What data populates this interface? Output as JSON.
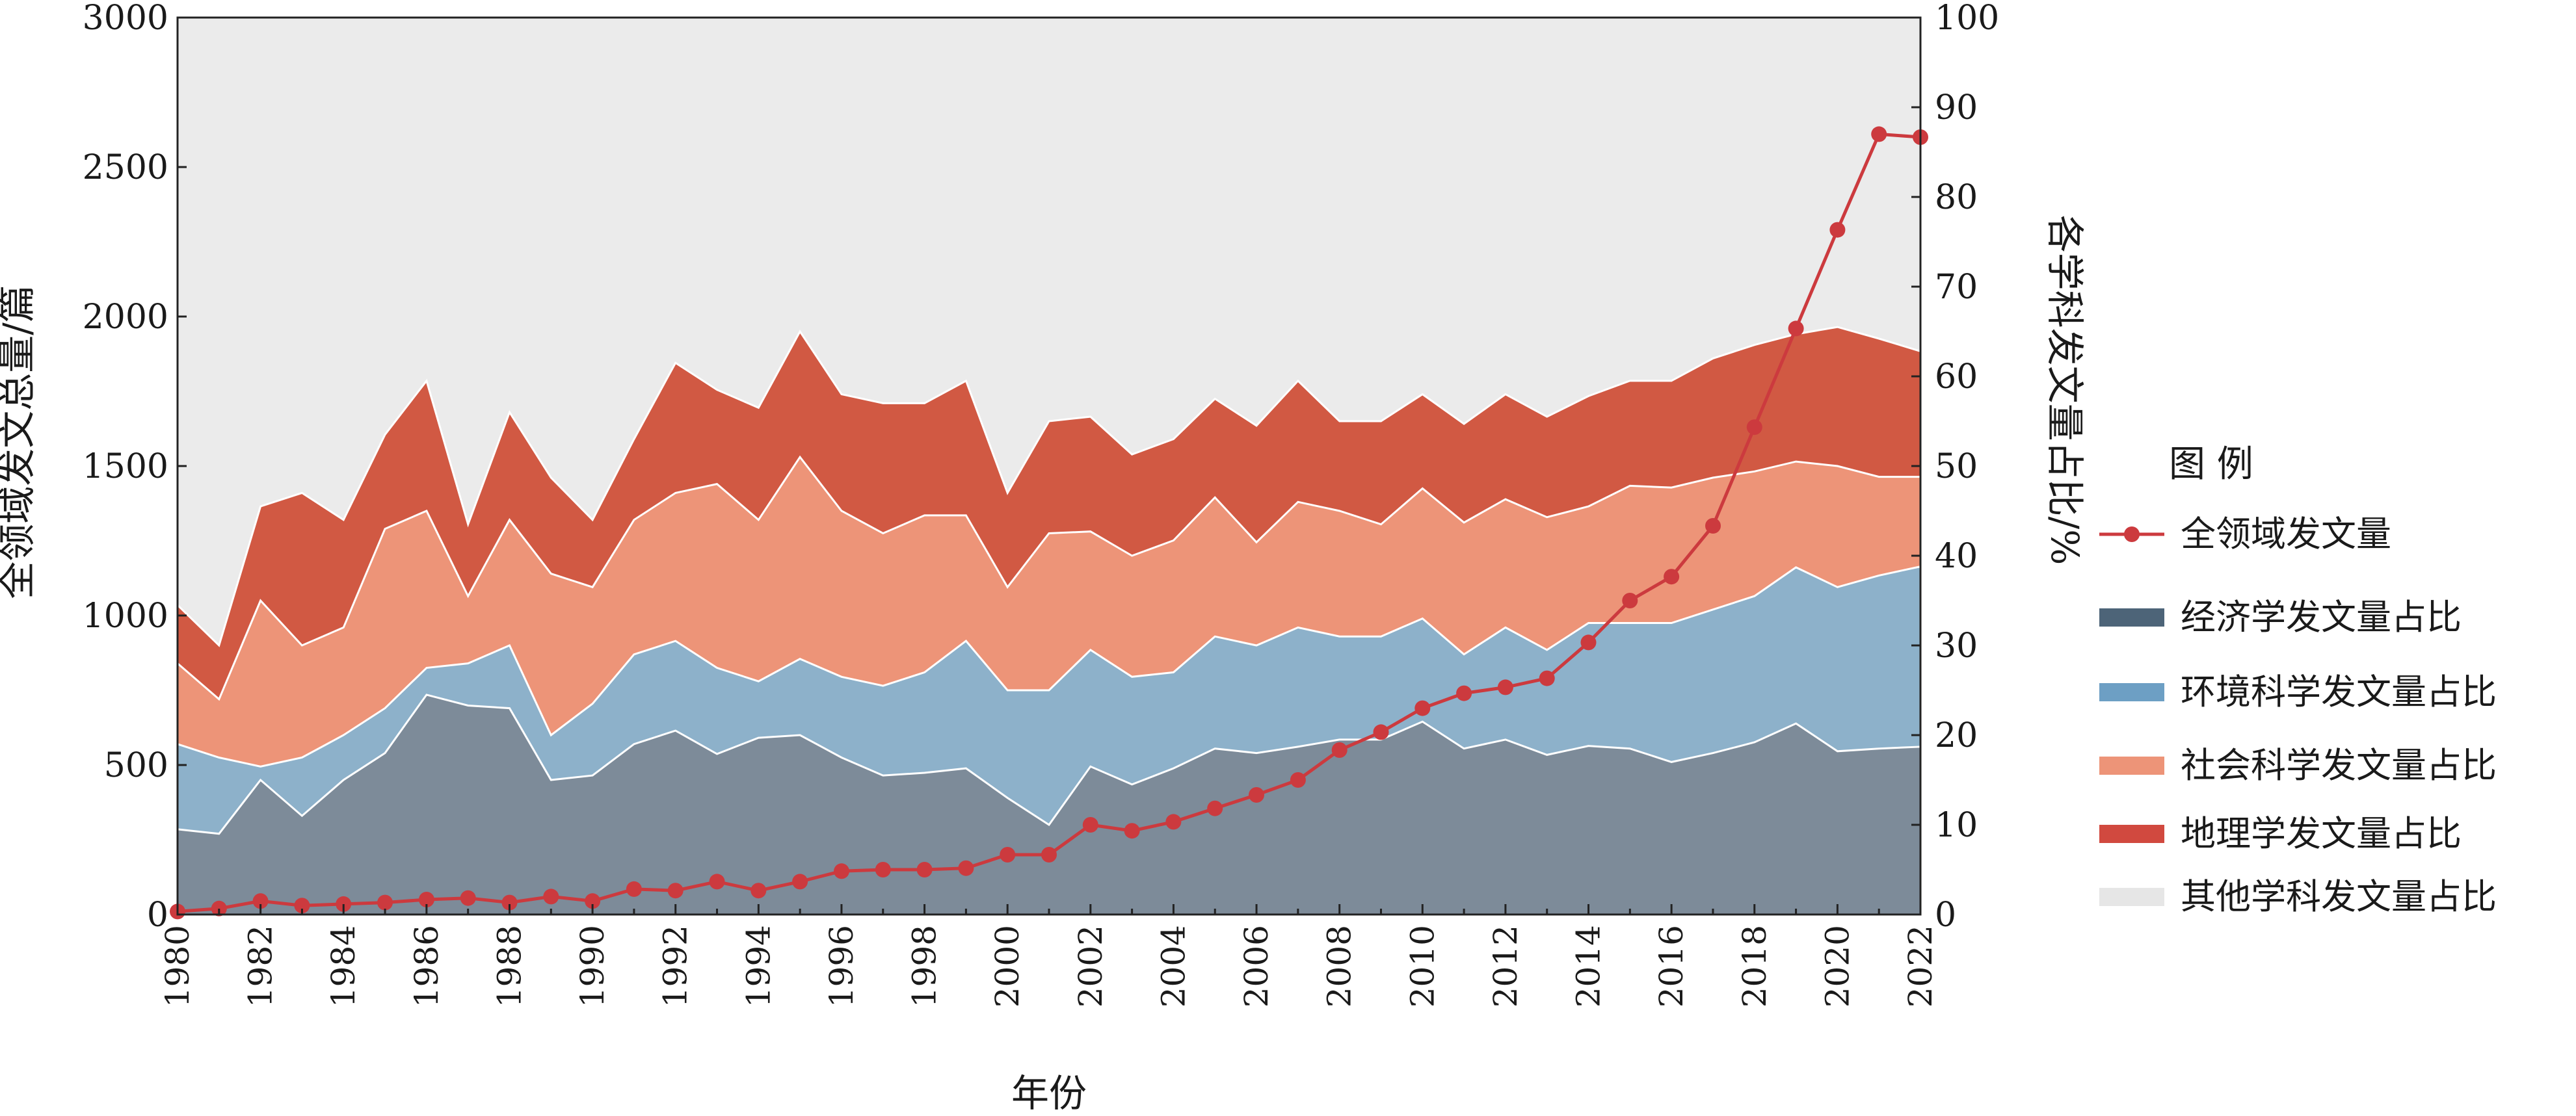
{
  "chart_data": {
    "type": "area",
    "xlabel": "年份",
    "ylabel_left": "全领域发文总量/篇",
    "ylabel_right": "各学科发文量占比/%",
    "ylim_left": [
      0,
      3000
    ],
    "ylim_right": [
      0,
      100
    ],
    "left_ticks": [
      0,
      500,
      1000,
      1500,
      2000,
      2500,
      3000
    ],
    "right_ticks": [
      0,
      10,
      20,
      30,
      40,
      50,
      60,
      70,
      80,
      90,
      100
    ],
    "x_ticks": [
      1980,
      1982,
      1984,
      1986,
      1988,
      1990,
      1992,
      1994,
      1996,
      1998,
      2000,
      2002,
      2004,
      2006,
      2008,
      2010,
      2012,
      2014,
      2016,
      2018,
      2020,
      2022
    ],
    "years": [
      1980,
      1981,
      1982,
      1983,
      1984,
      1985,
      1986,
      1987,
      1988,
      1989,
      1990,
      1991,
      1992,
      1993,
      1994,
      1995,
      1996,
      1997,
      1998,
      1999,
      2000,
      2001,
      2002,
      2003,
      2004,
      2005,
      2006,
      2007,
      2008,
      2009,
      2010,
      2011,
      2012,
      2013,
      2014,
      2015,
      2016,
      2017,
      2018,
      2019,
      2020,
      2021,
      2022
    ],
    "legend_title": "图   例",
    "line_series": {
      "name": "全领域发文量",
      "color": "#cc3a3e",
      "values": [
        10,
        20,
        45,
        30,
        35,
        40,
        50,
        55,
        40,
        60,
        45,
        85,
        80,
        110,
        80,
        110,
        145,
        150,
        150,
        155,
        200,
        200,
        300,
        280,
        310,
        355,
        400,
        450,
        550,
        610,
        690,
        740,
        760,
        790,
        910,
        1050,
        1130,
        1300,
        1630,
        1960,
        2290,
        2610,
        2600
      ]
    },
    "area_series": [
      {
        "name": "经济学发文量占比",
        "color": "#7d8b99",
        "legend_color": "#4d6478",
        "values": [
          9.5,
          9,
          15,
          11,
          15,
          18,
          24.5,
          23.3,
          23,
          15,
          15.5,
          19,
          20.5,
          17.9,
          19.7,
          20,
          17.5,
          15.5,
          15.8,
          16.3,
          13,
          10,
          16.5,
          14.5,
          16.3,
          18.5,
          18,
          18.7,
          19.5,
          19.5,
          21.5,
          18.5,
          19.5,
          17.8,
          18.8,
          18.5,
          17,
          18,
          19.2,
          21.3,
          18.2,
          18.5,
          18.7
        ]
      },
      {
        "name": "环境科学发文量占比",
        "color": "#8db1ca",
        "legend_color": "#6d9fc4",
        "values": [
          19,
          17.5,
          16.5,
          17.5,
          20,
          23,
          27.5,
          28,
          30,
          20,
          23.5,
          29,
          30.5,
          27.5,
          26,
          28.5,
          26.5,
          25.5,
          27,
          30.5,
          25,
          25,
          29.5,
          26.5,
          27,
          31,
          30,
          32,
          31,
          31,
          33,
          29,
          32,
          29.5,
          32.5,
          32.5,
          32.5,
          34,
          35.5,
          38.7,
          36.5,
          37.8,
          38.8
        ]
      },
      {
        "name": "社会科学发文量占比",
        "color": "#ed9478",
        "legend_color": "#ed9478",
        "values": [
          28,
          24,
          35,
          30,
          32,
          43,
          45,
          35.5,
          44,
          38,
          36.5,
          44,
          47,
          48,
          44,
          51,
          45,
          42.5,
          44.5,
          44.5,
          36.5,
          42.5,
          42.7,
          40,
          41.7,
          46.5,
          41.5,
          46,
          45,
          43.5,
          47.5,
          43.7,
          46.3,
          44.3,
          45.5,
          47.8,
          47.6,
          48.7,
          49.4,
          50.5,
          50,
          48.8,
          48.8
        ]
      },
      {
        "name": "地理学发文量占比",
        "color": "#d15943",
        "legend_color": "#d1493f",
        "values": [
          34.5,
          30,
          45.5,
          47,
          44,
          53.5,
          59.5,
          43.5,
          56,
          48.7,
          44,
          53,
          61.5,
          58.5,
          56.5,
          65,
          58,
          57,
          57,
          59.5,
          47,
          55,
          55.5,
          51.3,
          53,
          57.5,
          54.5,
          59.5,
          55,
          55,
          58,
          54.7,
          58,
          55.5,
          57.8,
          59.5,
          59.5,
          62,
          63.5,
          64.7,
          65.5,
          64.2,
          62.8
        ]
      },
      {
        "name": "其他学科发文量占比",
        "color": "#ebebeb",
        "legend_color": "#e6e6e6",
        "values": [
          100,
          100,
          100,
          100,
          100,
          100,
          100,
          100,
          100,
          100,
          100,
          100,
          100,
          100,
          100,
          100,
          100,
          100,
          100,
          100,
          100,
          100,
          100,
          100,
          100,
          100,
          100,
          100,
          100,
          100,
          100,
          100,
          100,
          100,
          100,
          100,
          100,
          100,
          100,
          100,
          100,
          100,
          100
        ]
      }
    ]
  }
}
